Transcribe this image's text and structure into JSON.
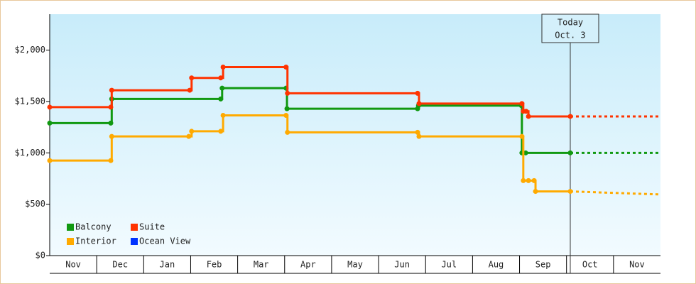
{
  "chart_data": {
    "type": "line",
    "step": "post",
    "categories": [
      "Nov",
      "Dec",
      "Jan",
      "Feb",
      "Mar",
      "Apr",
      "May",
      "Jun",
      "Jul",
      "Aug",
      "Sep",
      "Oct",
      "Nov"
    ],
    "xlim": [
      0,
      13
    ],
    "ylim": [
      0,
      2350
    ],
    "yticks": [
      {
        "value": 0,
        "label": "$0"
      },
      {
        "value": 500,
        "label": "$500"
      },
      {
        "value": 1000,
        "label": "$1,000"
      },
      {
        "value": 1500,
        "label": "$1,500"
      },
      {
        "value": 2000,
        "label": "$2,000"
      }
    ],
    "grid": false,
    "legend": "lower left",
    "forecast_x": [
      11.08,
      13
    ],
    "series": [
      {
        "name": "Balcony",
        "color": "#119911",
        "x": [
          0,
          1.3,
          1.32,
          3.64,
          3.67,
          5.03,
          5.05,
          7.83,
          7.85,
          10.04,
          10.05,
          10.13,
          11.08
        ],
        "values": [
          1290,
          1290,
          1525,
          1525,
          1630,
          1630,
          1430,
          1430,
          1460,
          1460,
          1000,
          1000,
          1000
        ],
        "forecast": [
          1000,
          1000
        ]
      },
      {
        "name": "Suite",
        "color": "#ff3300",
        "x": [
          0,
          1.3,
          1.32,
          2.98,
          3.02,
          3.64,
          3.69,
          5.03,
          5.06,
          7.83,
          7.86,
          10.05,
          10.08,
          10.14,
          10.19,
          11.08
        ],
        "values": [
          1445,
          1445,
          1610,
          1610,
          1730,
          1730,
          1835,
          1835,
          1580,
          1580,
          1480,
          1480,
          1405,
          1405,
          1355,
          1355
        ],
        "forecast": [
          1355,
          1355
        ]
      },
      {
        "name": "Interior",
        "color": "#ffaa00",
        "x": [
          0,
          1.3,
          1.32,
          2.96,
          3.02,
          3.64,
          3.69,
          5.03,
          5.06,
          7.83,
          7.86,
          10.05,
          10.08,
          10.19,
          10.31,
          10.34,
          11.08
        ],
        "values": [
          925,
          925,
          1160,
          1160,
          1210,
          1210,
          1365,
          1365,
          1200,
          1200,
          1160,
          1160,
          730,
          730,
          730,
          625,
          625
        ],
        "forecast": [
          625,
          595
        ]
      },
      {
        "name": "Ocean View",
        "color": "#0033ff",
        "x": [],
        "values": []
      }
    ],
    "annotation": {
      "x": 11.08,
      "lines": [
        "Today",
        "Oct. 3"
      ]
    }
  }
}
